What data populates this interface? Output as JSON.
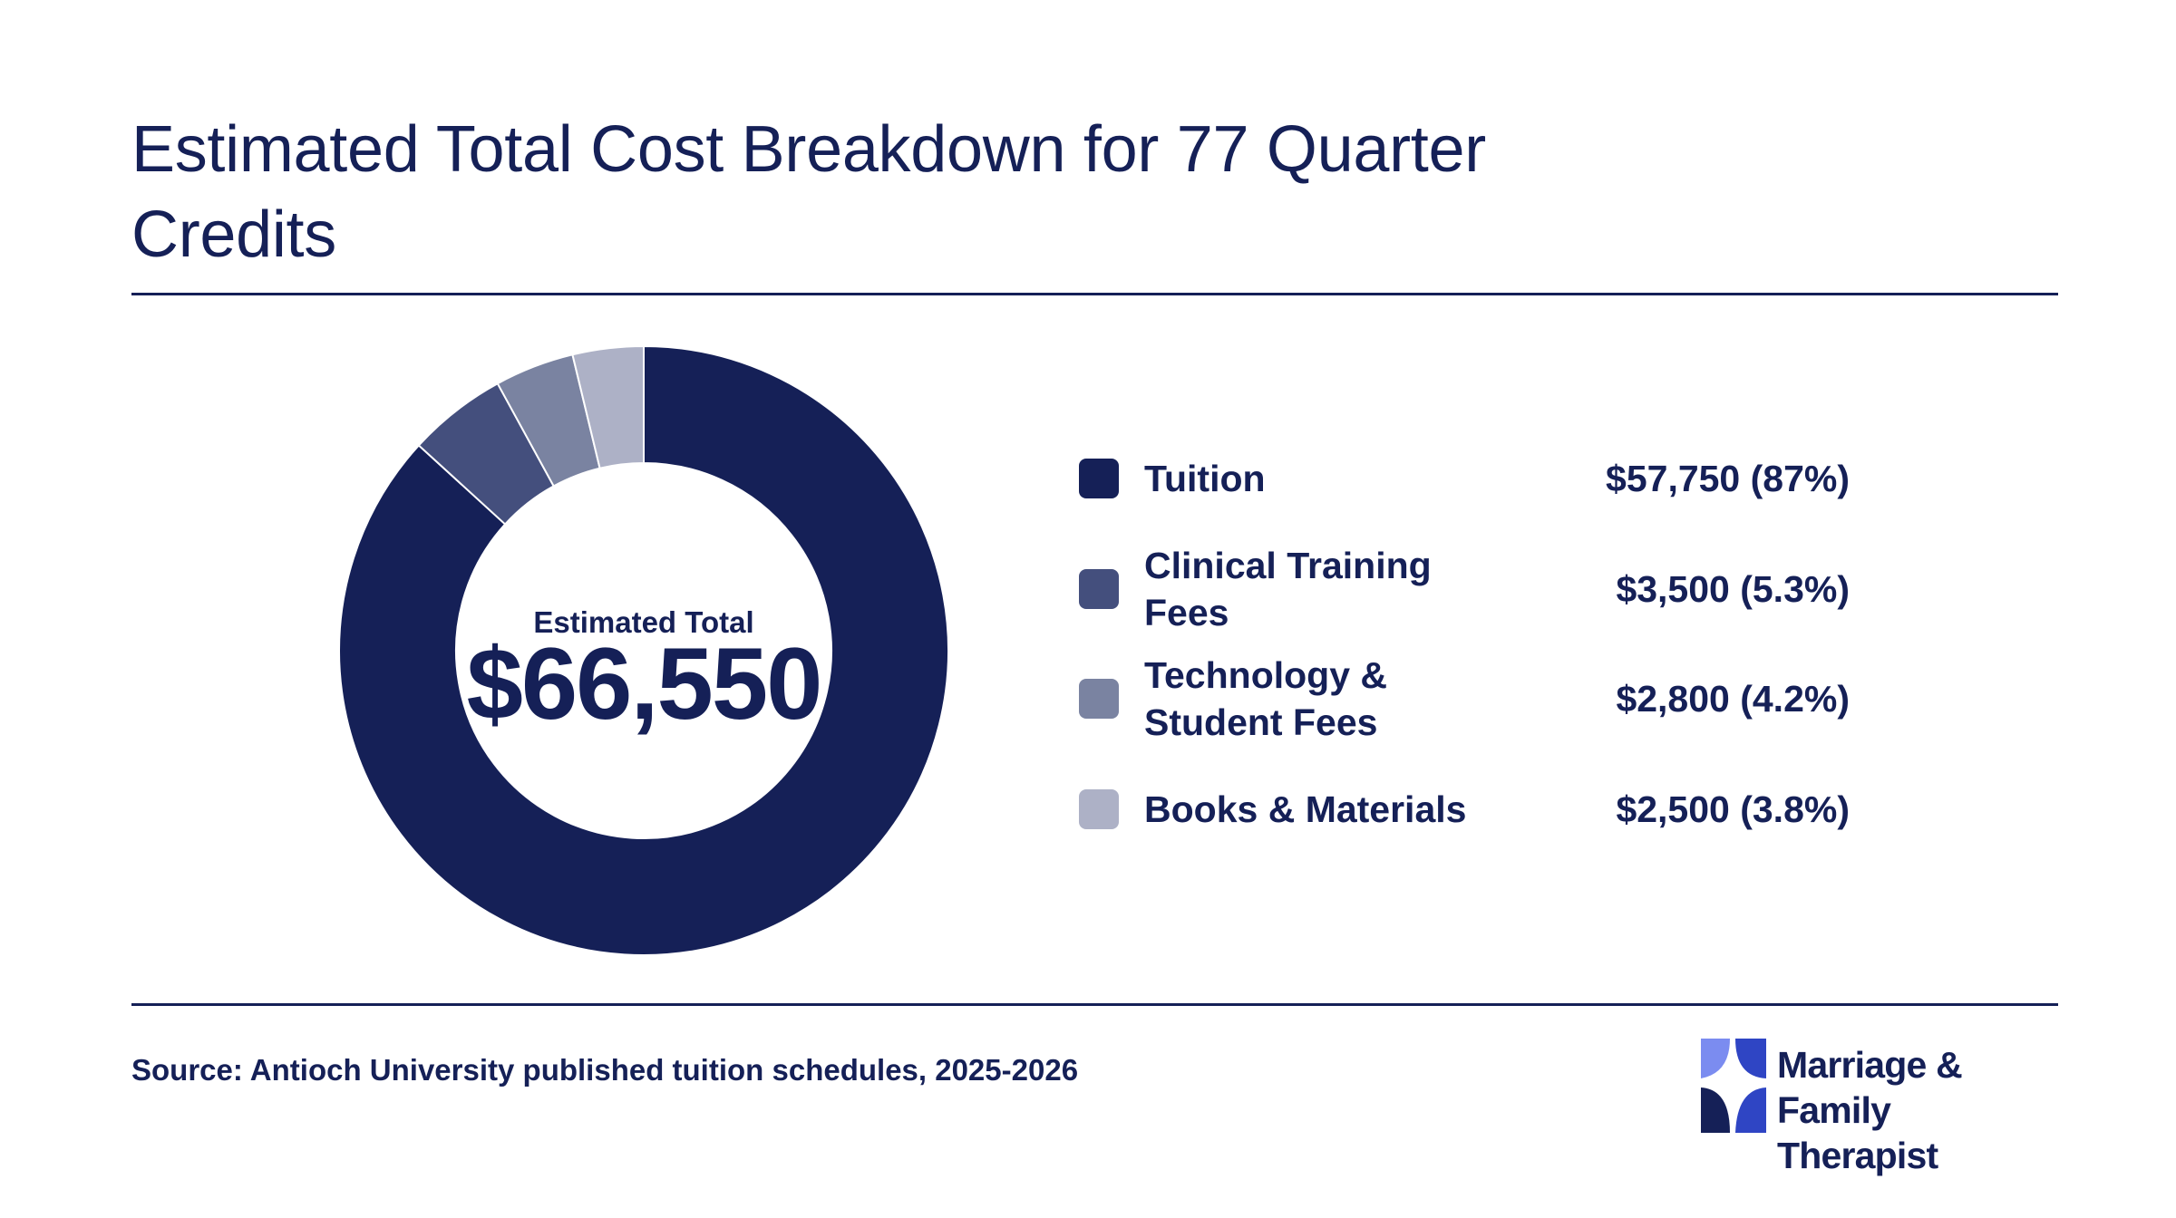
{
  "title": "Estimated Total Cost Breakdown for 77 Quarter Credits",
  "center": {
    "label": "Estimated Total",
    "value": "$66,550"
  },
  "chart_data": {
    "type": "pie",
    "variant": "donut",
    "title": "Estimated Total Cost Breakdown for 77 Quarter Credits",
    "total": 66550,
    "slices": [
      {
        "label": "Tuition",
        "value": 57750,
        "percent": 87,
        "display": "$57,750 (87%)",
        "color": "#152057"
      },
      {
        "label": "Clinical Training Fees",
        "value": 3500,
        "percent": 5.3,
        "display": "$3,500 (5.3%)",
        "color": "#444f7d"
      },
      {
        "label": "Technology & Student Fees",
        "value": 2800,
        "percent": 4.2,
        "display": "$2,800 (4.2%)",
        "color": "#7a83a1"
      },
      {
        "label": "Books & Materials",
        "value": 2500,
        "percent": 3.8,
        "display": "$2,500 (3.8%)",
        "color": "#adb1c6"
      }
    ],
    "legend_position": "right"
  },
  "legend_lines": [
    [
      "Tuition"
    ],
    [
      "Clinical Training",
      "Fees"
    ],
    [
      "Technology &",
      "Student Fees"
    ],
    [
      "Books & Materials"
    ]
  ],
  "footer": {
    "source": "Source: Antioch University published tuition schedules, 2025-2026",
    "brand_line1": "Marriage & Family",
    "brand_line2": "Therapist",
    "logo_colors": [
      "#7b8cf0",
      "#2f45c4",
      "#152057"
    ]
  }
}
